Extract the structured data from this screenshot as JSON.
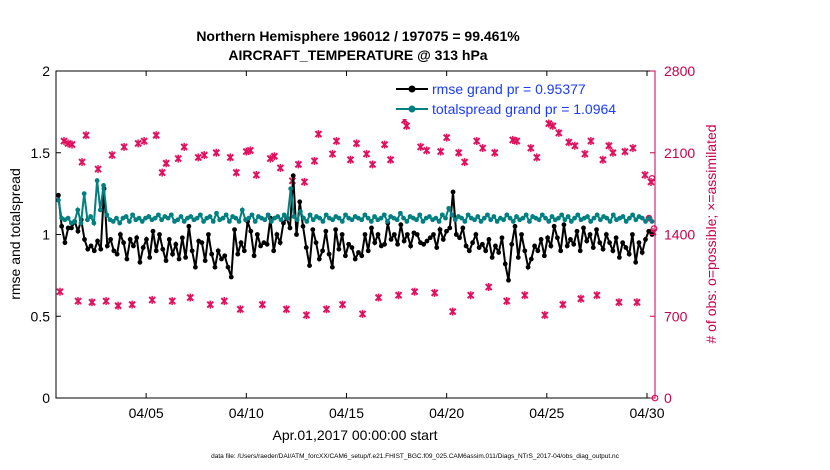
{
  "chart_data": {
    "type": "line",
    "title": "Northern Hemisphere 196012 / 197075 = 99.461%",
    "subtitle": "AIRCRAFT_TEMPERATURE @ 313 hPa",
    "xlabel": "Apr.01,2017 00:00:00 start",
    "ylabel": "rmse and totalspread",
    "y2label": "# of obs: o=possible; ×=assimilated",
    "footer": "data file: /Users/raeder/DAI/ATM_forcXX/CAM6_setup/f.e21.FHIST_BGC.f09_025.CAM6assim.011/Diags_NTrS_2017-04/obs_diag_output.nc",
    "xlim": [
      0.5,
      30.4
    ],
    "ylim": [
      0,
      2
    ],
    "y2lim": [
      0,
      2800
    ],
    "x_ticks": [
      5,
      10,
      15,
      20,
      25,
      30
    ],
    "x_tick_labels": [
      "04/05",
      "04/10",
      "04/15",
      "04/20",
      "04/25",
      "04/30"
    ],
    "y_ticks": [
      "0",
      "0.5",
      "1",
      "1.5",
      "2"
    ],
    "y2_ticks": [
      "0",
      "700",
      "1400",
      "2100",
      "2800"
    ],
    "legend_position": "top-right",
    "colors": {
      "rmse": "#000000",
      "spread": "#008080",
      "obs": "#e0115f",
      "axis": "#000000",
      "y2axis": "#c8004f",
      "legend_text": "#1a3aff"
    },
    "series": [
      {
        "name": "rmse grand pr = 0.95377",
        "color": "#000000",
        "values": [
          1.24,
          1.05,
          0.95,
          1.04,
          1.04,
          1.08,
          1.02,
          1.09,
          0.97,
          0.91,
          0.93,
          0.9,
          0.96,
          0.91,
          1.28,
          0.93,
          0.97,
          0.9,
          0.88,
          1.0,
          0.95,
          0.85,
          0.97,
          0.93,
          0.98,
          0.83,
          0.92,
          0.97,
          0.86,
          1.02,
          0.9,
          1.0,
          0.91,
          0.84,
          0.97,
          0.88,
          0.94,
          0.85,
          0.98,
          0.86,
          1.05,
          0.9,
          0.8,
          0.96,
          0.95,
          0.84,
          1.0,
          0.88,
          0.8,
          0.9,
          0.85,
          0.87,
          0.8,
          0.74,
          1.03,
          0.88,
          0.95,
          0.9,
          1.08,
          1.02,
          0.87,
          1.0,
          0.93,
          0.95,
          0.94,
          1.1,
          0.9,
          1.0,
          0.95,
          1.07,
          1.1,
          1.04,
          1.36,
          1.0,
          1.2,
          1.05,
          0.92,
          0.81,
          1.03,
          0.95,
          0.85,
          0.9,
          1.02,
          0.88,
          0.8,
          1.03,
          0.91,
          1.0,
          0.87,
          0.94,
          0.92,
          0.85,
          0.89,
          0.87,
          1.0,
          0.9,
          1.04,
          0.95,
          1.0,
          0.93,
          0.94,
          1.07,
          0.97,
          1.0,
          0.94,
          1.06,
          0.96,
          1.0,
          0.93,
          1.01,
          1.0,
          0.95,
          0.94,
          0.96,
          0.98,
          1.0,
          0.92,
          1.03,
          0.97,
          1.02,
          1.04,
          1.26,
          1.0,
          0.98,
          1.04,
          0.93,
          0.9,
          0.95,
          1.0,
          0.92,
          0.94,
          0.9,
          0.97,
          0.86,
          0.93,
          0.89,
          0.98,
          0.82,
          0.72,
          0.94,
          1.05,
          0.86,
          1.0,
          0.9,
          0.8,
          0.85,
          0.93,
          0.9,
          0.97,
          0.87,
          0.98,
          0.93,
          1.05,
          0.98,
          0.9,
          1.06,
          0.93,
          0.97,
          0.94,
          1.02,
          0.9,
          1.04,
          0.96,
          1.0,
          0.92,
          1.03,
          0.95,
          0.91,
          1.0,
          0.95,
          0.9,
          0.98,
          0.86,
          0.95,
          0.92,
          0.88,
          1.0,
          0.83,
          0.95,
          0.89,
          0.97,
          1.02,
          1.0
        ]
      },
      {
        "name": "totalspread grand pr = 1.0964",
        "color": "#008080",
        "values": [
          1.21,
          1.1,
          1.09,
          1.1,
          1.07,
          1.08,
          1.15,
          1.07,
          1.25,
          1.09,
          1.11,
          1.07,
          1.33,
          1.15,
          1.3,
          1.12,
          1.09,
          1.08,
          1.1,
          1.07,
          1.1,
          1.11,
          1.08,
          1.12,
          1.09,
          1.1,
          1.08,
          1.1,
          1.11,
          1.09,
          1.1,
          1.12,
          1.09,
          1.11,
          1.1,
          1.12,
          1.08,
          1.09,
          1.11,
          1.08,
          1.1,
          1.11,
          1.09,
          1.1,
          1.12,
          1.08,
          1.1,
          1.11,
          1.08,
          1.13,
          1.09,
          1.1,
          1.12,
          1.08,
          1.11,
          1.1,
          1.08,
          1.15,
          1.09,
          1.1,
          1.12,
          1.08,
          1.11,
          1.1,
          1.09,
          1.12,
          1.08,
          1.1,
          1.11,
          1.09,
          1.12,
          1.1,
          1.28,
          1.11,
          1.09,
          1.14,
          1.1,
          1.08,
          1.12,
          1.09,
          1.11,
          1.1,
          1.08,
          1.12,
          1.1,
          1.09,
          1.11,
          1.1,
          1.08,
          1.12,
          1.1,
          1.09,
          1.11,
          1.1,
          1.09,
          1.12,
          1.1,
          1.08,
          1.11,
          1.09,
          1.1,
          1.12,
          1.08,
          1.11,
          1.1,
          1.09,
          1.13,
          1.1,
          1.08,
          1.11,
          1.1,
          1.09,
          1.12,
          1.08,
          1.1,
          1.11,
          1.09,
          1.1,
          1.08,
          1.12,
          1.1,
          1.16,
          1.12,
          1.09,
          1.11,
          1.1,
          1.08,
          1.12,
          1.1,
          1.09,
          1.11,
          1.08,
          1.1,
          1.12,
          1.09,
          1.11,
          1.08,
          1.1,
          1.09,
          1.12,
          1.1,
          1.08,
          1.11,
          1.09,
          1.1,
          1.12,
          1.08,
          1.11,
          1.1,
          1.09,
          1.12,
          1.1,
          1.08,
          1.11,
          1.09,
          1.1,
          1.12,
          1.09,
          1.11,
          1.08,
          1.1,
          1.12,
          1.09,
          1.1,
          1.11,
          1.08,
          1.1,
          1.12,
          1.09,
          1.11,
          1.1,
          1.08,
          1.12,
          1.09,
          1.1,
          1.11,
          1.08,
          1.1,
          1.12,
          1.09,
          1.11,
          1.1,
          1.08,
          1.1,
          1.08
        ]
      }
    ],
    "obs_assimilated": [
      [
        0.7,
        910
      ],
      [
        0.9,
        2200
      ],
      [
        1.1,
        2180
      ],
      [
        1.3,
        2170
      ],
      [
        1.6,
        830
      ],
      [
        1.8,
        2020
      ],
      [
        2.0,
        2250
      ],
      [
        2.3,
        820
      ],
      [
        2.6,
        1960
      ],
      [
        3.0,
        830
      ],
      [
        3.3,
        2080
      ],
      [
        3.6,
        790
      ],
      [
        3.9,
        2150
      ],
      [
        4.3,
        800
      ],
      [
        4.6,
        2180
      ],
      [
        4.9,
        2200
      ],
      [
        5.3,
        840
      ],
      [
        5.5,
        2250
      ],
      [
        5.8,
        1930
      ],
      [
        6.0,
        2010
      ],
      [
        6.3,
        830
      ],
      [
        6.6,
        2050
      ],
      [
        6.9,
        2150
      ],
      [
        7.2,
        860
      ],
      [
        7.6,
        2060
      ],
      [
        7.9,
        2080
      ],
      [
        8.2,
        800
      ],
      [
        8.5,
        2100
      ],
      [
        8.9,
        830
      ],
      [
        9.2,
        2060
      ],
      [
        9.5,
        1930
      ],
      [
        9.7,
        760
      ],
      [
        10.0,
        2110
      ],
      [
        10.2,
        2120
      ],
      [
        10.5,
        1910
      ],
      [
        10.8,
        800
      ],
      [
        11.2,
        2050
      ],
      [
        11.4,
        2070
      ],
      [
        11.7,
        1970
      ],
      [
        12.0,
        760
      ],
      [
        12.3,
        1860
      ],
      [
        12.6,
        2000
      ],
      [
        12.9,
        1850
      ],
      [
        13.0,
        710
      ],
      [
        13.4,
        2030
      ],
      [
        13.6,
        2260
      ],
      [
        14.0,
        760
      ],
      [
        14.3,
        2090
      ],
      [
        14.5,
        2200
      ],
      [
        14.8,
        800
      ],
      [
        15.2,
        2040
      ],
      [
        15.5,
        2180
      ],
      [
        15.8,
        720
      ],
      [
        16.0,
        2090
      ],
      [
        16.3,
        2000
      ],
      [
        16.6,
        860
      ],
      [
        16.9,
        2170
      ],
      [
        17.2,
        2040
      ],
      [
        17.6,
        880
      ],
      [
        17.9,
        2380
      ],
      [
        18.0,
        2330
      ],
      [
        18.4,
        910
      ],
      [
        18.7,
        2150
      ],
      [
        19.0,
        2120
      ],
      [
        19.4,
        900
      ],
      [
        19.7,
        2110
      ],
      [
        20.0,
        2230
      ],
      [
        20.3,
        740
      ],
      [
        20.6,
        2100
      ],
      [
        20.9,
        2020
      ],
      [
        21.2,
        880
      ],
      [
        21.5,
        2200
      ],
      [
        21.8,
        2140
      ],
      [
        22.1,
        950
      ],
      [
        22.4,
        2100
      ],
      [
        22.7,
        2490
      ],
      [
        23.0,
        830
      ],
      [
        23.3,
        2210
      ],
      [
        23.5,
        2200
      ],
      [
        23.9,
        880
      ],
      [
        24.2,
        2140
      ],
      [
        24.5,
        2060
      ],
      [
        24.9,
        710
      ],
      [
        25.1,
        2350
      ],
      [
        25.3,
        2330
      ],
      [
        25.6,
        2270
      ],
      [
        25.8,
        800
      ],
      [
        26.1,
        2190
      ],
      [
        26.4,
        2160
      ],
      [
        26.7,
        850
      ],
      [
        26.9,
        2090
      ],
      [
        27.2,
        2200
      ],
      [
        27.5,
        880
      ],
      [
        27.8,
        2040
      ],
      [
        28.1,
        2160
      ],
      [
        28.3,
        2100
      ],
      [
        28.6,
        820
      ],
      [
        28.9,
        2110
      ],
      [
        29.3,
        2140
      ],
      [
        29.5,
        820
      ],
      [
        29.9,
        1910
      ],
      [
        30.2,
        1850
      ],
      [
        30.3,
        1420
      ]
    ],
    "obs_possible": [
      [
        30.25,
        1880
      ],
      [
        30.1,
        1540
      ],
      [
        30.35,
        1450
      ],
      [
        30.4,
        0
      ]
    ]
  }
}
